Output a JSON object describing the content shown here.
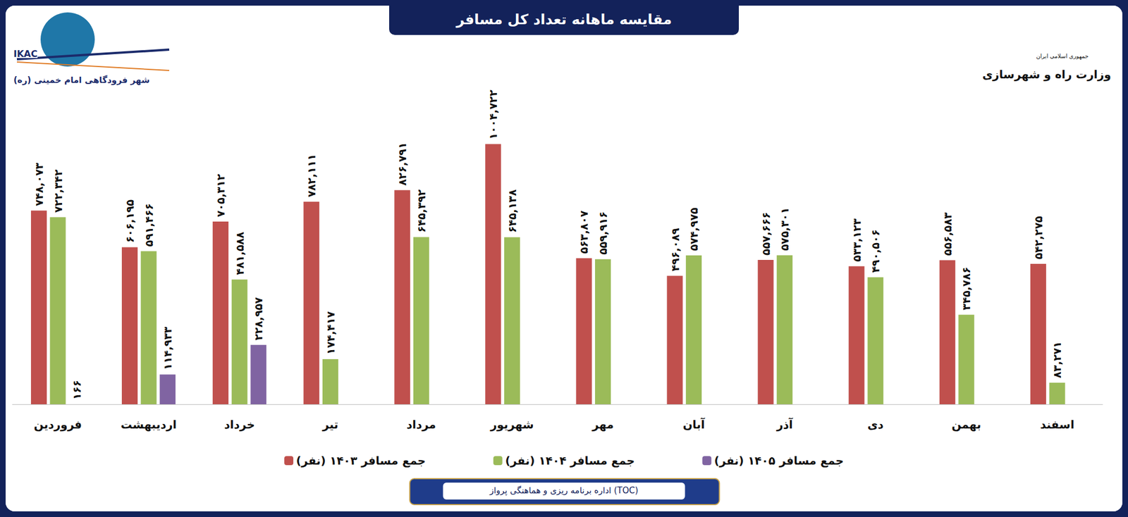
{
  "chart_data": {
    "type": "bar",
    "title": "مقایسه ماهانه تعداد کل مسافر",
    "annotations": [
      "IKAC",
      "شهر فرودگاهی امام خمینی (ره)",
      "جمهوری اسلامی ایران",
      "وزارت راه و شهرسازی",
      "اداره برنامه ریزی و هماهنگی پرواز (TOC)"
    ],
    "categories": [
      "فروردین",
      "اردیبهشت",
      "خرداد",
      "تیر",
      "مرداد",
      "شهریور",
      "مهر",
      "آبان",
      "آذر",
      "دی",
      "بهمن",
      "اسفند"
    ],
    "series": [
      {
        "name": "جمع مسافر ۱۴۰۳ (نفر)",
        "color": "#c0504d",
        "values": [
          748073,
          606195,
          705312,
          782111,
          826791,
          1004722,
          563807,
          496089,
          557666,
          533123,
          556583,
          542275
        ],
        "value_labels": [
          "۷۴۸,۰۷۳",
          "۶۰۶,۱۹۵",
          "۷۰۵,۳۱۲",
          "۷۸۲,۱۱۱",
          "۸۲۶,۷۹۱",
          "۱۰۰۴,۷۲۲",
          "۵۶۳,۸۰۷",
          "۴۹۶,۰۸۹",
          "۵۵۷,۶۶۶",
          "۵۳۳,۱۲۳",
          "۵۵۶,۵۸۳",
          "۵۴۲,۲۷۵"
        ]
      },
      {
        "name": "جمع مسافر ۱۴۰۴ (نفر)",
        "color": "#9bbb59",
        "values": [
          722342,
          591466,
          481588,
          174417,
          645392,
          645138,
          559916,
          574975,
          575301,
          490506,
          345786,
          83271
        ],
        "value_labels": [
          "۷۲۲,۳۴۲",
          "۵۹۱,۴۶۶",
          "۴۸۱,۵۸۸",
          "۱۷۴,۴۱۷",
          "۶۴۵,۳۹۲",
          "۶۴۵,۱۳۸",
          "۵۵۹,۹۱۶",
          "۵۷۴,۹۷۵",
          "۵۷۵,۳۰۱",
          "۴۹۰,۵۰۶",
          "۳۴۵,۷۸۶",
          "۸۳,۲۷۱"
        ]
      },
      {
        "name": "جمع مسافر ۱۴۰۵ (نفر)",
        "color": "#8064a2",
        "values": [
          166,
          114933,
          228957,
          null,
          null,
          null,
          null,
          null,
          null,
          null,
          null,
          null
        ],
        "value_labels": [
          "۱۶۶",
          "۱۱۴,۹۳۳",
          "۲۲۸,۹۵۷",
          null,
          null,
          null,
          null,
          null,
          null,
          null,
          null,
          null
        ]
      }
    ],
    "ylim": [
      0,
      1300000
    ],
    "data_labels": true,
    "tick_labels": "x",
    "grid": false,
    "legend": "bottom"
  }
}
